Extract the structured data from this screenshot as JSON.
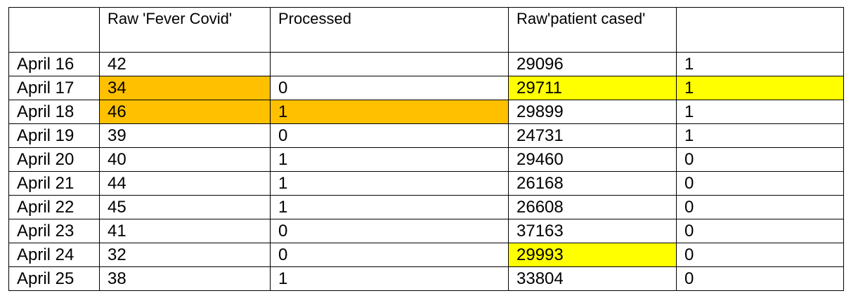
{
  "header": [
    "",
    "Raw 'Fever Covid'",
    "Processed",
    "Raw'patient cased'",
    ""
  ],
  "rows": [
    {
      "date": "April 16",
      "fever": "42",
      "processed": "",
      "patient": "29096",
      "flag": "1"
    },
    {
      "date": "April 17",
      "fever": "34",
      "processed": "0",
      "patient": "29711",
      "flag": "1"
    },
    {
      "date": "April 18",
      "fever": "46",
      "processed": "1",
      "patient": "29899",
      "flag": "1"
    },
    {
      "date": "April 19",
      "fever": "39",
      "processed": "0",
      "patient": "24731",
      "flag": "1"
    },
    {
      "date": "April 20",
      "fever": "40",
      "processed": "1",
      "patient": "29460",
      "flag": "0"
    },
    {
      "date": "April 21",
      "fever": "44",
      "processed": "1",
      "patient": "26168",
      "flag": "0"
    },
    {
      "date": "April 22",
      "fever": "45",
      "processed": "1",
      "patient": "26608",
      "flag": "0"
    },
    {
      "date": "April 23",
      "fever": "41",
      "processed": "0",
      "patient": "37163",
      "flag": "0"
    },
    {
      "date": "April 24",
      "fever": "32",
      "processed": "0",
      "patient": "29993",
      "flag": "0"
    },
    {
      "date": "April 25",
      "fever": "38",
      "processed": "1",
      "patient": "33804",
      "flag": "0"
    }
  ],
  "highlight_colors": {
    "orange": "#ffc000",
    "yellow": "#ffff00"
  }
}
